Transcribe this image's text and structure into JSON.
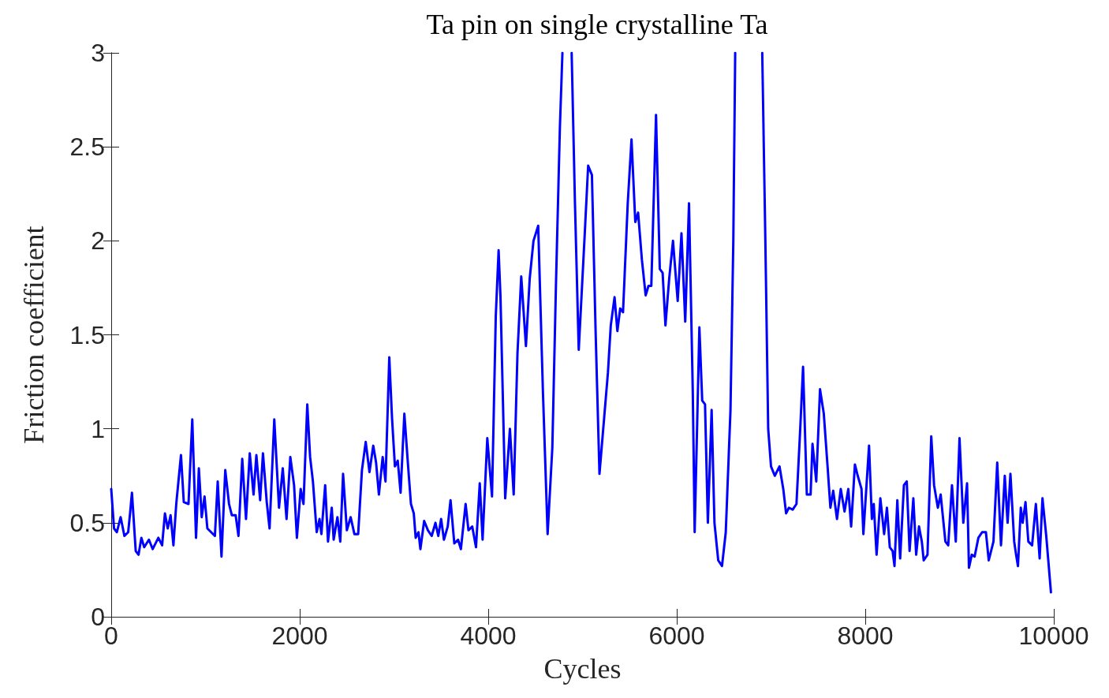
{
  "chart_data": {
    "type": "line",
    "title": "Ta pin on single crystalline Ta",
    "xlabel": "Cycles",
    "ylabel": "Friction coefficient",
    "xlim": [
      0,
      10000
    ],
    "ylim": [
      0,
      3
    ],
    "xticks": [
      0,
      2000,
      4000,
      6000,
      8000,
      10000
    ],
    "yticks": [
      0,
      0.5,
      1,
      1.5,
      2,
      2.5,
      3
    ],
    "marker": "none",
    "line_style": "solid",
    "x": [
      0,
      30,
      60,
      100,
      140,
      180,
      200,
      220,
      260,
      290,
      320,
      350,
      400,
      440,
      500,
      540,
      570,
      600,
      630,
      660,
      690,
      740,
      770,
      820,
      860,
      900,
      930,
      960,
      990,
      1020,
      1060,
      1100,
      1130,
      1170,
      1210,
      1250,
      1280,
      1320,
      1350,
      1390,
      1430,
      1470,
      1510,
      1540,
      1580,
      1610,
      1650,
      1680,
      1730,
      1780,
      1820,
      1860,
      1900,
      1940,
      1970,
      2010,
      2040,
      2080,
      2110,
      2140,
      2180,
      2210,
      2230,
      2270,
      2300,
      2340,
      2360,
      2400,
      2430,
      2460,
      2500,
      2540,
      2580,
      2620,
      2660,
      2700,
      2740,
      2780,
      2810,
      2840,
      2880,
      2910,
      2950,
      2980,
      3010,
      3040,
      3070,
      3110,
      3150,
      3180,
      3210,
      3230,
      3260,
      3280,
      3320,
      3360,
      3400,
      3440,
      3470,
      3500,
      3530,
      3570,
      3600,
      3640,
      3680,
      3710,
      3760,
      3790,
      3830,
      3870,
      3910,
      3940,
      3990,
      4040,
      4080,
      4110,
      4130,
      4180,
      4230,
      4270,
      4310,
      4350,
      4400,
      4440,
      4480,
      4530,
      4580,
      4630,
      4680,
      4720,
      4760,
      4787,
      4840,
      4885,
      4920,
      4960,
      5020,
      5060,
      5100,
      5140,
      5180,
      5220,
      5270,
      5300,
      5340,
      5370,
      5400,
      5430,
      5480,
      5520,
      5560,
      5590,
      5630,
      5670,
      5700,
      5730,
      5760,
      5780,
      5820,
      5850,
      5880,
      5920,
      5960,
      6010,
      6050,
      6090,
      6130,
      6170,
      6190,
      6240,
      6270,
      6300,
      6330,
      6370,
      6400,
      6440,
      6480,
      6520,
      6570,
      6600,
      6620,
      6760,
      6907,
      6940,
      6970,
      7000,
      7040,
      7090,
      7130,
      7160,
      7190,
      7230,
      7270,
      7310,
      7340,
      7380,
      7420,
      7440,
      7480,
      7520,
      7560,
      7600,
      7630,
      7660,
      7700,
      7740,
      7780,
      7820,
      7850,
      7890,
      7920,
      7960,
      7980,
      8040,
      8070,
      8090,
      8120,
      8160,
      8200,
      8230,
      8260,
      8290,
      8310,
      8340,
      8370,
      8410,
      8440,
      8470,
      8510,
      8540,
      8570,
      8600,
      8620,
      8660,
      8700,
      8730,
      8770,
      8800,
      8850,
      8880,
      8920,
      8960,
      9000,
      9040,
      9080,
      9100,
      9130,
      9160,
      9200,
      9240,
      9280,
      9310,
      9360,
      9400,
      9440,
      9480,
      9510,
      9540,
      9580,
      9600,
      9620,
      9650,
      9670,
      9700,
      9730,
      9770,
      9810,
      9850,
      9880,
      9920,
      9970
    ],
    "series": [
      {
        "color": "#0000ff",
        "values": [
          0.68,
          0.47,
          0.45,
          0.53,
          0.43,
          0.45,
          0.55,
          0.66,
          0.35,
          0.33,
          0.42,
          0.37,
          0.41,
          0.36,
          0.42,
          0.38,
          0.55,
          0.47,
          0.54,
          0.38,
          0.6,
          0.86,
          0.61,
          0.6,
          1.05,
          0.42,
          0.79,
          0.53,
          0.64,
          0.47,
          0.45,
          0.43,
          0.72,
          0.32,
          0.78,
          0.6,
          0.54,
          0.54,
          0.43,
          0.84,
          0.52,
          0.87,
          0.65,
          0.86,
          0.62,
          0.87,
          0.61,
          0.47,
          1.05,
          0.58,
          0.79,
          0.52,
          0.85,
          0.7,
          0.42,
          0.68,
          0.6,
          1.13,
          0.85,
          0.72,
          0.45,
          0.52,
          0.44,
          0.7,
          0.4,
          0.58,
          0.41,
          0.53,
          0.4,
          0.76,
          0.46,
          0.53,
          0.44,
          0.44,
          0.78,
          0.93,
          0.77,
          0.91,
          0.82,
          0.65,
          0.85,
          0.72,
          1.38,
          1.05,
          0.8,
          0.83,
          0.66,
          1.08,
          0.8,
          0.6,
          0.55,
          0.42,
          0.45,
          0.36,
          0.51,
          0.46,
          0.43,
          0.5,
          0.43,
          0.52,
          0.41,
          0.48,
          0.62,
          0.39,
          0.41,
          0.36,
          0.6,
          0.46,
          0.48,
          0.37,
          0.71,
          0.41,
          0.95,
          0.64,
          1.6,
          1.95,
          1.7,
          0.63,
          1.0,
          0.65,
          1.4,
          1.81,
          1.44,
          1.8,
          2.0,
          2.08,
          1.2,
          0.44,
          0.9,
          1.8,
          2.6,
          3,
          null,
          3,
          2.2,
          1.42,
          2.0,
          2.4,
          2.35,
          1.5,
          0.76,
          1.0,
          1.3,
          1.55,
          1.7,
          1.52,
          1.64,
          1.62,
          2.2,
          2.54,
          2.1,
          2.15,
          1.9,
          1.71,
          1.76,
          1.76,
          2.3,
          2.67,
          1.85,
          1.83,
          1.55,
          1.8,
          2.0,
          1.68,
          2.04,
          1.57,
          2.2,
          1.2,
          0.45,
          1.54,
          1.15,
          1.13,
          0.5,
          1.1,
          0.5,
          0.3,
          0.27,
          0.45,
          1.1,
          2.0,
          3,
          null,
          3,
          2.0,
          1.0,
          0.8,
          0.75,
          0.8,
          0.68,
          0.55,
          0.58,
          0.57,
          0.6,
          1.0,
          1.33,
          0.65,
          0.65,
          0.92,
          0.72,
          1.21,
          1.08,
          0.8,
          0.58,
          0.67,
          0.52,
          0.68,
          0.56,
          0.68,
          0.48,
          0.81,
          0.75,
          0.68,
          0.44,
          0.91,
          0.52,
          0.6,
          0.33,
          0.63,
          0.44,
          0.58,
          0.37,
          0.35,
          0.27,
          0.62,
          0.31,
          0.7,
          0.72,
          0.35,
          0.63,
          0.33,
          0.48,
          0.4,
          0.3,
          0.33,
          0.96,
          0.7,
          0.58,
          0.65,
          0.4,
          0.38,
          0.7,
          0.4,
          0.95,
          0.5,
          0.71,
          0.26,
          0.33,
          0.32,
          0.42,
          0.45,
          0.45,
          0.3,
          0.4,
          0.82,
          0.38,
          0.75,
          0.5,
          0.76,
          0.4,
          0.33,
          0.27,
          0.58,
          0.5,
          0.61,
          0.4,
          0.38,
          0.6,
          0.31,
          0.63,
          0.43,
          0.13
        ]
      }
    ]
  }
}
